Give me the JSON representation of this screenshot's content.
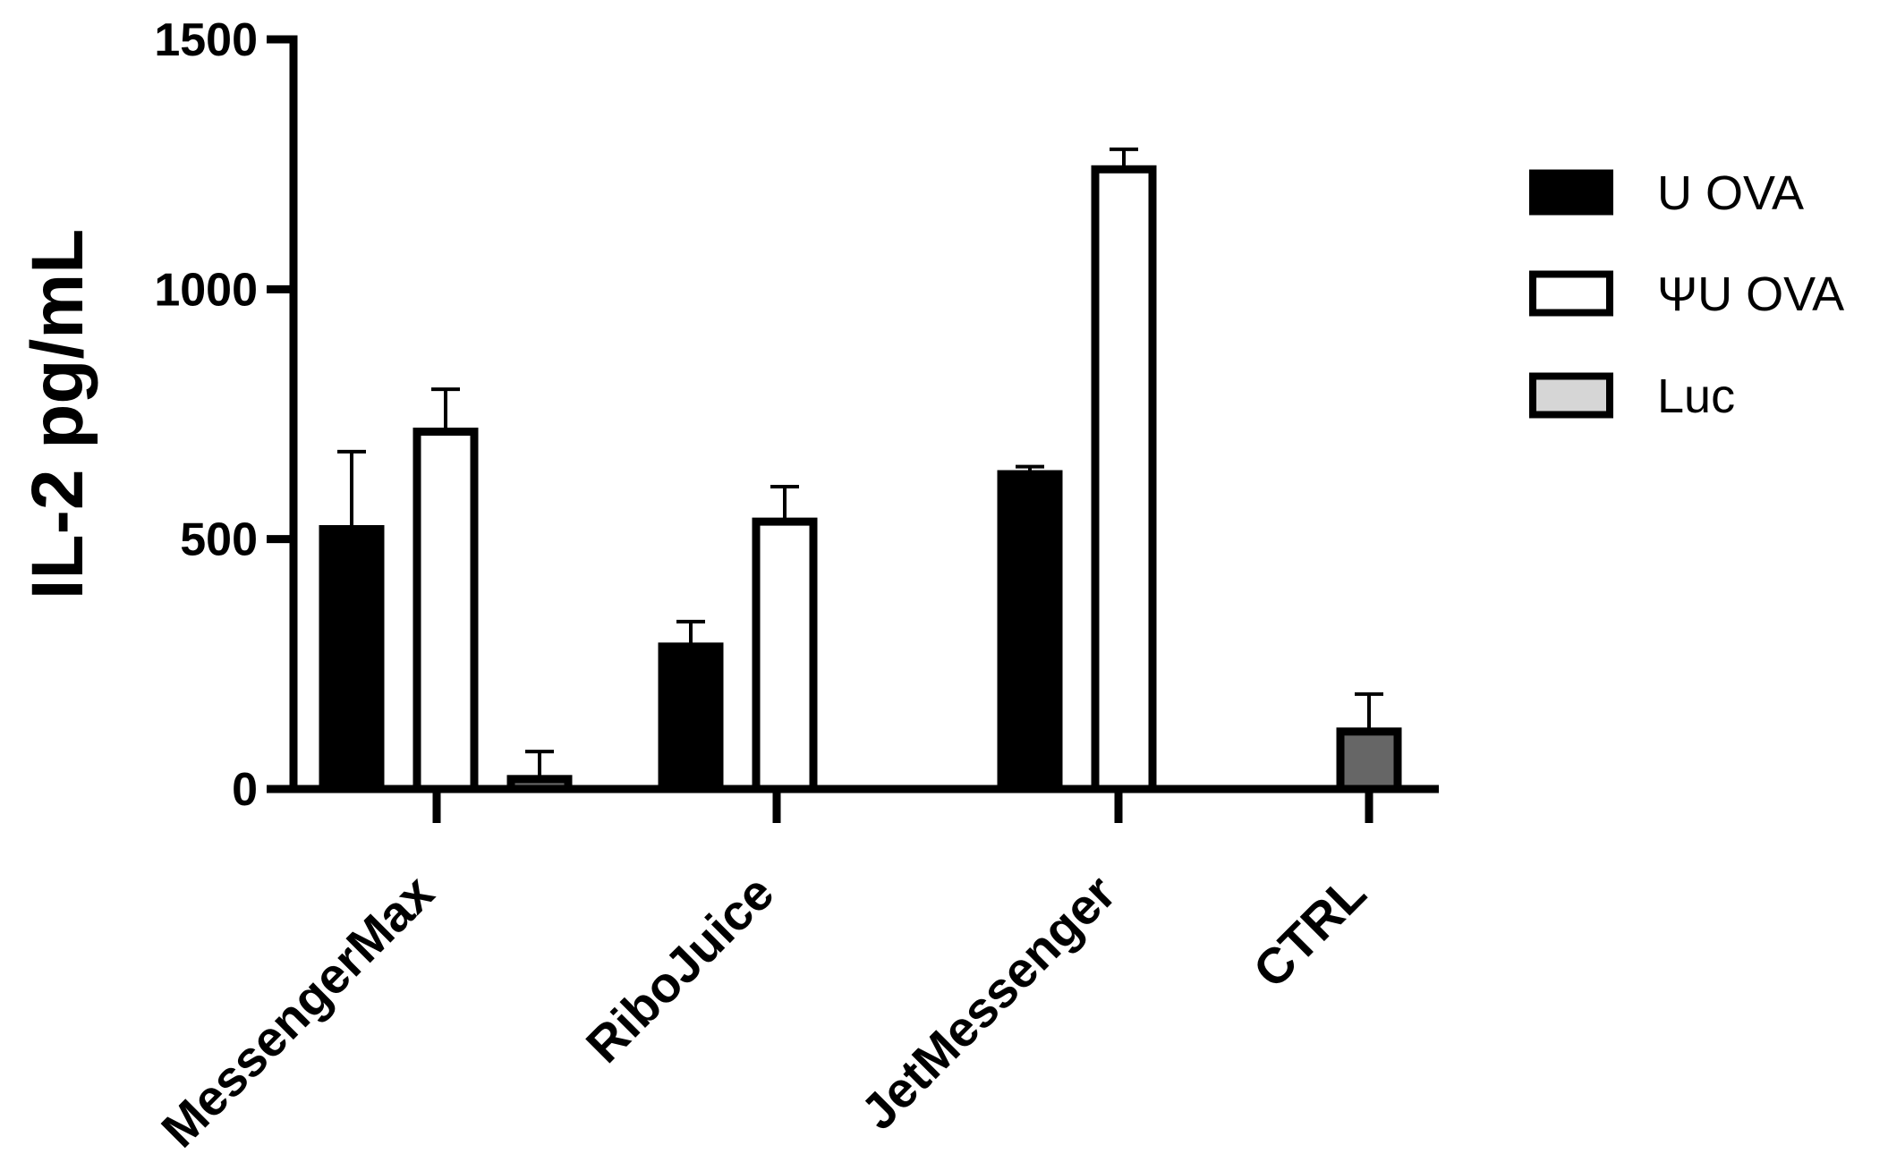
{
  "chart_data": {
    "type": "bar",
    "title": "",
    "xlabel": "",
    "ylabel": "IL-2 pg/mL",
    "ylim": [
      0,
      1500
    ],
    "yticks": [
      0,
      500,
      1000,
      1500
    ],
    "categories": [
      "MessengerMax",
      "RiboJuice",
      "JetMessenger",
      "CTRL"
    ],
    "legend_position": "right",
    "grid": false,
    "series": [
      {
        "name": "U OVA",
        "values": [
          520,
          285,
          630,
          null
        ],
        "errors": [
          155,
          50,
          15,
          null
        ],
        "fill": "#000000",
        "stroke": "#000000"
      },
      {
        "name": "ΨU OVA",
        "values": [
          715,
          535,
          1240,
          null
        ],
        "errors": [
          85,
          70,
          40,
          null
        ],
        "fill": "#ffffff",
        "stroke": "#000000"
      },
      {
        "name": "Luc",
        "values": [
          20,
          null,
          null,
          115
        ],
        "errors": [
          55,
          null,
          null,
          75
        ],
        "fill": "#666666",
        "stroke": "#000000",
        "legend_fill": "#d6d6d6"
      }
    ]
  }
}
